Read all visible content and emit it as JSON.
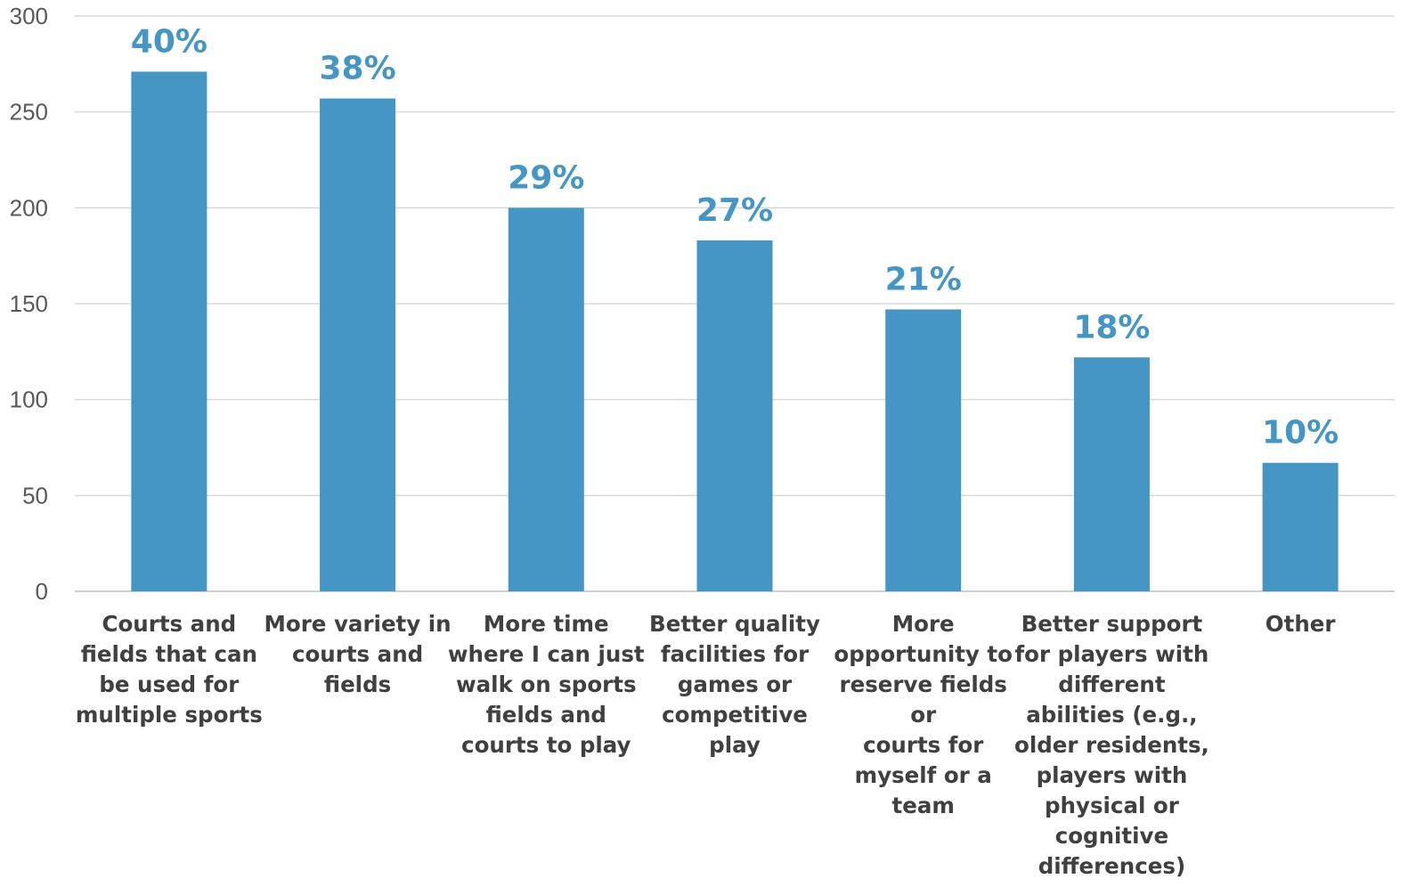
{
  "chart_data": {
    "type": "bar",
    "categories": [
      "Courts and fields that can be used for multiple sports",
      "More variety in courts and fields",
      "More time where I can just walk on sports fields and courts to play",
      "Better quality facilities for games or competitive play",
      "More opportunity to reserve fields or courts for myself or a team",
      "Better support for players with different abilities (e.g., older residents, players with physical or cognitive differences)",
      "Other"
    ],
    "category_lines": [
      "Courts and\nfields that can\nbe used for\nmultiple sports",
      "More variety in\ncourts and\nfields",
      "More time\nwhere I can just\nwalk on sports\nfields and\ncourts to play",
      "Better quality\nfacilities for\ngames or\ncompetitive\nplay",
      "More\nopportunity to\nreserve fields or\ncourts for\nmyself or a\nteam",
      "Better support\nfor players with\ndifferent\nabilities (e.g.,\nolder residents,\nplayers with\nphysical or\ncognitive\ndifferences)",
      "Other"
    ],
    "values": [
      271,
      257,
      200,
      183,
      147,
      122,
      67
    ],
    "data_labels": [
      "40%",
      "38%",
      "29%",
      "27%",
      "21%",
      "18%",
      "10%"
    ],
    "ylim": [
      0,
      300
    ],
    "yticks": [
      0,
      50,
      100,
      150,
      200,
      250,
      300
    ],
    "grid": true,
    "legend": "none",
    "bar_color": "#4596C5",
    "label_color": "#4596C5",
    "grid_color": "#D9D9D9"
  }
}
